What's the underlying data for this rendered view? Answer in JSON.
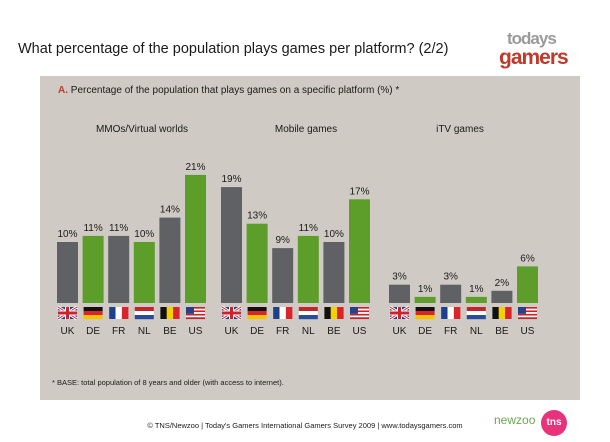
{
  "title": "What percentage of the population plays games per platform? (2/2)",
  "logo_text": "todays gamers",
  "subtitle_letter": "A.",
  "subtitle": "Percentage of the population that plays games on a specific platform (%) *",
  "footnote": "* BASE: total population of 8 years and older (with access to internet).",
  "footer": "© TNS/Newzoo | Today's Gamers International Gamers Survey 2009 | www.todaysgamers.com",
  "newzoo_text": "newzoo",
  "tns_text": "tns",
  "colors": {
    "grey_bar": "#5f6164",
    "green_bar": "#5d9e2a",
    "panel": "#cfcbc4",
    "accent": "#c0392b"
  },
  "chart_data": [
    {
      "type": "bar",
      "title": "MMOs/Virtual worlds",
      "categories": [
        "UK",
        "DE",
        "FR",
        "NL",
        "BE",
        "US"
      ],
      "values": [
        10,
        11,
        11,
        10,
        14,
        21
      ],
      "value_labels": [
        "10%",
        "11%",
        "11%",
        "10%",
        "14%",
        "21%"
      ],
      "flags": [
        "uk",
        "de",
        "fr",
        "nl",
        "be",
        "us"
      ],
      "ylim": [
        0,
        25
      ]
    },
    {
      "type": "bar",
      "title": "Mobile games",
      "categories": [
        "UK",
        "DE",
        "FR",
        "NL",
        "BE",
        "US"
      ],
      "values": [
        19,
        13,
        9,
        11,
        10,
        17
      ],
      "value_labels": [
        "19%",
        "13%",
        "9%",
        "11%",
        "10%",
        "17%"
      ],
      "flags": [
        "uk",
        "de",
        "fr",
        "nl",
        "be",
        "us"
      ],
      "ylim": [
        0,
        25
      ]
    },
    {
      "type": "bar",
      "title": "iTV games",
      "categories": [
        "UK",
        "DE",
        "FR",
        "NL",
        "BE",
        "US"
      ],
      "values": [
        3,
        1,
        3,
        1,
        2,
        6
      ],
      "value_labels": [
        "3%",
        "1%",
        "3%",
        "1%",
        "2%",
        "6%"
      ],
      "flags": [
        "uk",
        "de",
        "fr",
        "nl",
        "be",
        "us"
      ],
      "ylim": [
        0,
        25
      ]
    }
  ]
}
